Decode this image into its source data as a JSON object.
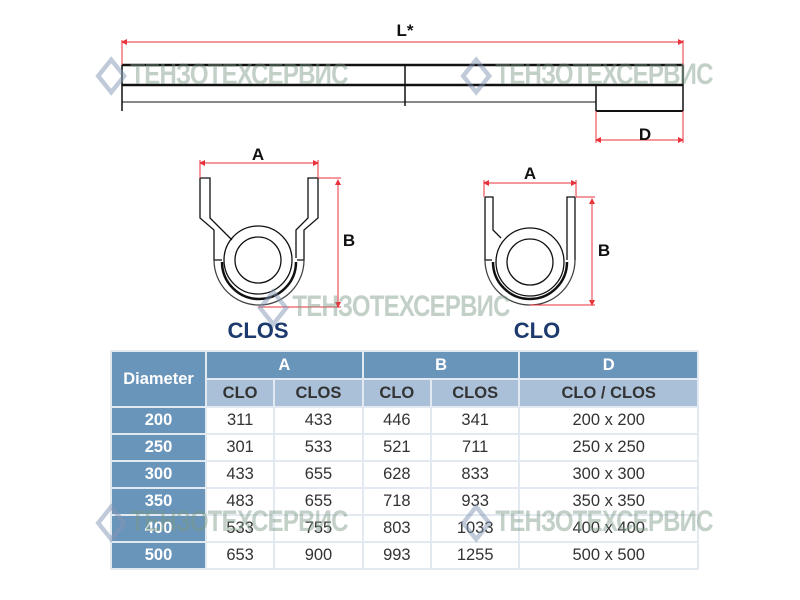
{
  "drawing": {
    "length_label": "L*",
    "depth_label": "D",
    "clos": {
      "name": "CLOS",
      "width_label": "A",
      "height_label": "B"
    },
    "clo": {
      "name": "CLO",
      "width_label": "A",
      "height_label": "B"
    },
    "colors": {
      "dimension": "#e8323c",
      "outline": "#111111",
      "name": "#1d3a6e"
    }
  },
  "watermark": {
    "text": "ТЕНЗОТЕХСЕРВИС"
  },
  "table": {
    "header": {
      "diameter": "Diameter",
      "a": "A",
      "b": "B",
      "d": "D"
    },
    "subheader": {
      "a_clo": "CLO",
      "a_clos": "CLOS",
      "b_clo": "CLO",
      "b_clos": "CLOS",
      "d": "CLO / CLOS"
    },
    "rows": [
      [
        "200",
        "311",
        "433",
        "446",
        "341",
        "200 x 200"
      ],
      [
        "250",
        "301",
        "533",
        "521",
        "711",
        "250 x 250"
      ],
      [
        "300",
        "433",
        "655",
        "628",
        "833",
        "300 x 300"
      ],
      [
        "350",
        "483",
        "655",
        "718",
        "933",
        "350 x 350"
      ],
      [
        "400",
        "533",
        "755",
        "803",
        "1033",
        "400 x 400"
      ],
      [
        "500",
        "653",
        "900",
        "993",
        "1255",
        "500 x 500"
      ]
    ],
    "colors": {
      "header": "#6a95bb",
      "subheader": "#aac0d8"
    }
  }
}
